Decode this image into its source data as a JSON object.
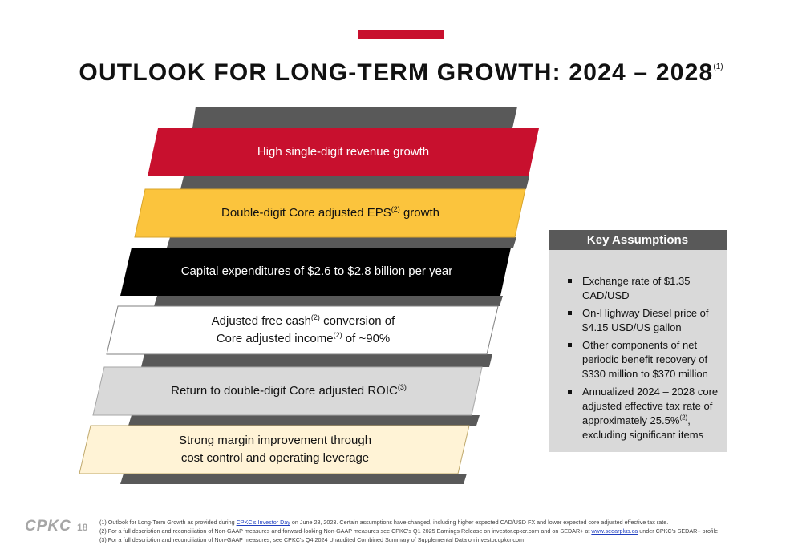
{
  "title": {
    "main": "OUTLOOK FOR LONG-TERM GROWTH: 2024 – 2028",
    "sup": "(1)"
  },
  "colors": {
    "accent": "#c8102e",
    "band_red": "#c8102e",
    "band_yellow": "#fbc43d",
    "band_black": "#000000",
    "band_white": "#ffffff",
    "band_gray": "#d9d9d9",
    "band_cream": "#fff3d6",
    "stair_gray": "#595959"
  },
  "bands": [
    {
      "id": "revenue",
      "pre": "High single-digit revenue growth"
    },
    {
      "id": "eps",
      "pre": "Double-digit Core adjusted EPS",
      "sup": "(2)",
      "post": " growth"
    },
    {
      "id": "capex",
      "pre": "Capital expenditures of $2.6 to $2.8 billion per year"
    },
    {
      "id": "fcf",
      "pre": "Adjusted free cash",
      "sup": "(2)",
      "post": " conversion of",
      "pre2": "Core adjusted income",
      "sup2": "(2)",
      "post2": " of ~90%"
    },
    {
      "id": "roic",
      "pre": "Return to double-digit Core adjusted ROIC",
      "sup": "(3)"
    },
    {
      "id": "margin",
      "pre": "Strong margin improvement through",
      "pre2": "cost control and operating leverage"
    }
  ],
  "key_assumptions": {
    "header": "Key Assumptions",
    "items": [
      {
        "text": "Exchange rate of $1.35 CAD/USD"
      },
      {
        "text": "On-Highway Diesel price of $4.15 USD/US gallon"
      },
      {
        "text": "Other components of net periodic benefit recovery of $330 million to $370 million"
      },
      {
        "text": "Annualized 2024 – 2028 core adjusted effective tax rate of approximately 25.5%",
        "sup": "(2)",
        "post": ", excluding significant items"
      }
    ]
  },
  "footer": {
    "logo": "CPKC",
    "page_number": "18",
    "footnote1_pre": "(1) Outlook for Long-Term Growth as provided during ",
    "footnote1_link": "CPKC's Investor Day",
    "footnote1_post": " on June 28, 2023. Certain assumptions have changed, including higher expected CAD/USD FX and lower expected core adjusted effective tax rate.",
    "footnote2_pre": "(2) For a full description and reconciliation of Non-GAAP measures and forward-looking Non-GAAP measures see CPKC's Q1 2025 Earnings Release on investor.cpkcr.com and on SEDAR+ at ",
    "footnote2_link": "www.sedarplus.ca",
    "footnote2_post": " under CPKC's SEDAR+ profile",
    "footnote3": "(3) For a full description and reconciliation of Non-GAAP measures, see CPKC's Q4 2024 Unaudited Combined Summary of Supplemental Data on investor.cpkcr.com"
  }
}
